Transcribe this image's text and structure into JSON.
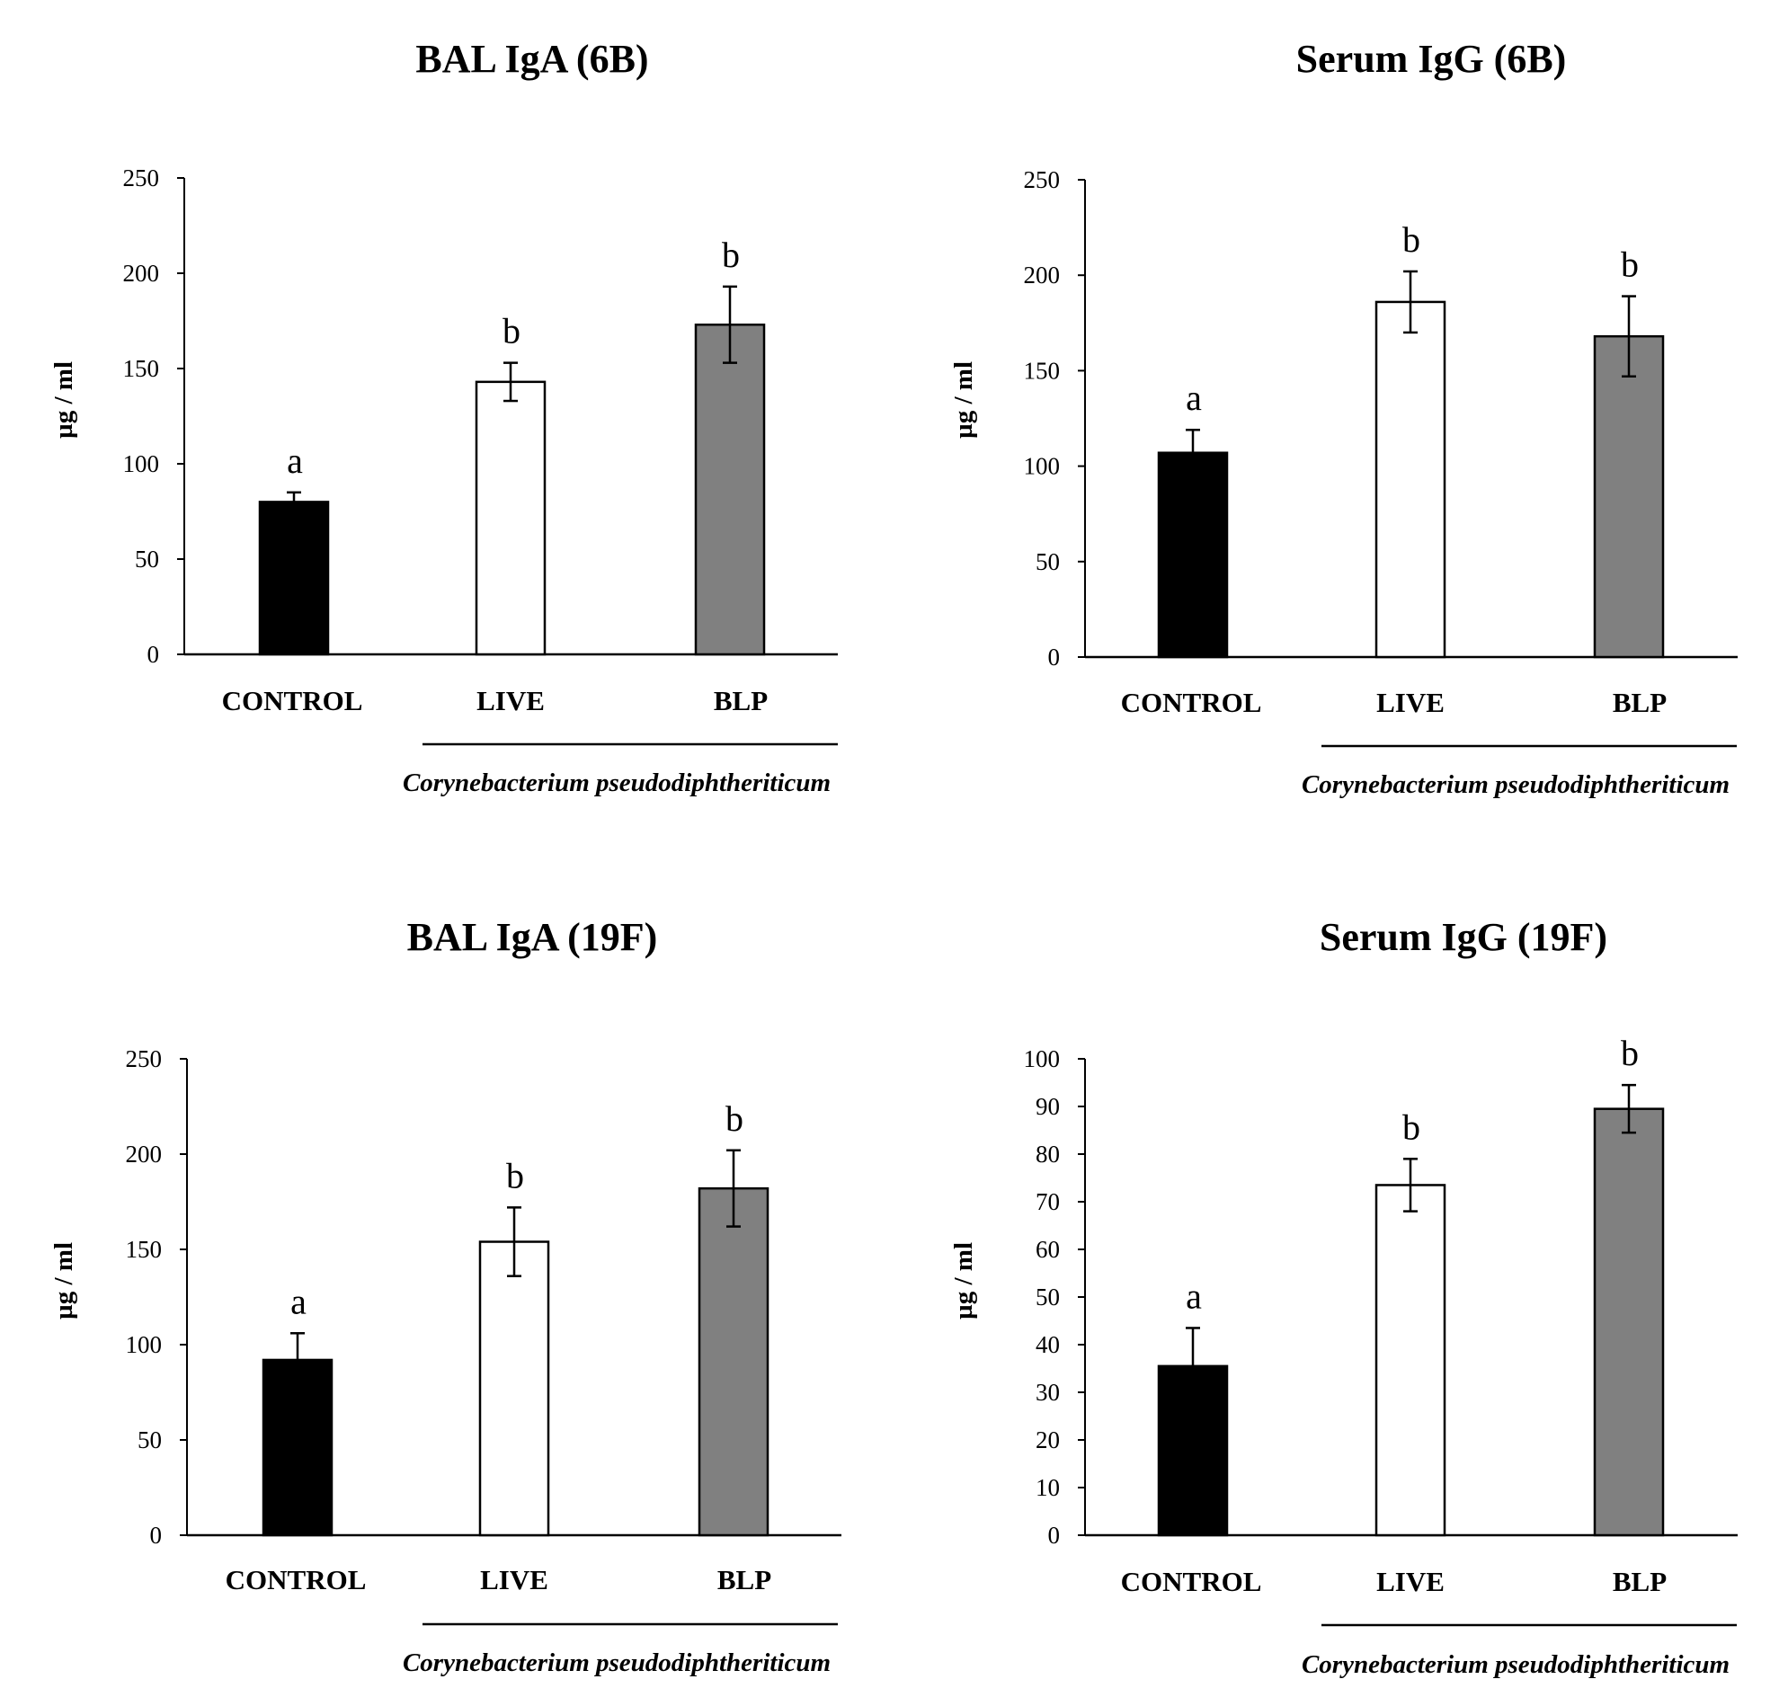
{
  "colors": {
    "control": "#000000",
    "live": "#ffffff",
    "blp": "#808080",
    "axis": "#000000"
  },
  "chart_data": [
    {
      "type": "bar",
      "title": "BAL IgA (6B)",
      "ylabel": "µg / ml",
      "xlabel": "",
      "ylim": [
        0,
        250
      ],
      "yticks": [
        0,
        50,
        100,
        150,
        200,
        250
      ],
      "categories": [
        "CONTROL",
        "LIVE",
        "BLP"
      ],
      "values": [
        80,
        143,
        173
      ],
      "errors": [
        5,
        10,
        20
      ],
      "significance": [
        "a",
        "b",
        "b"
      ],
      "group_label": "Corynebacterium pseudodiphtheriticum"
    },
    {
      "type": "bar",
      "title": "Serum IgG (6B)",
      "ylabel": "µg / ml",
      "xlabel": "",
      "ylim": [
        0,
        250
      ],
      "yticks": [
        0,
        50,
        100,
        150,
        200,
        250
      ],
      "categories": [
        "CONTROL",
        "LIVE",
        "BLP"
      ],
      "values": [
        107,
        186,
        168
      ],
      "errors": [
        12,
        16,
        21
      ],
      "significance": [
        "a",
        "b",
        "b"
      ],
      "group_label": "Corynebacterium pseudodiphtheriticum"
    },
    {
      "type": "bar",
      "title": "BAL IgA (19F)",
      "ylabel": "µg / ml",
      "xlabel": "",
      "ylim": [
        0,
        250
      ],
      "yticks": [
        0,
        50,
        100,
        150,
        200,
        250
      ],
      "categories": [
        "CONTROL",
        "LIVE",
        "BLP"
      ],
      "values": [
        92,
        154,
        182
      ],
      "errors": [
        14,
        18,
        20
      ],
      "significance": [
        "a",
        "b",
        "b"
      ],
      "group_label": "Corynebacterium pseudodiphtheriticum"
    },
    {
      "type": "bar",
      "title": "Serum IgG (19F)",
      "ylabel": "µg / ml",
      "xlabel": "",
      "ylim": [
        0,
        100
      ],
      "yticks": [
        0,
        10,
        20,
        30,
        40,
        50,
        60,
        70,
        80,
        90,
        100
      ],
      "categories": [
        "CONTROL",
        "LIVE",
        "BLP"
      ],
      "values": [
        35.5,
        73.5,
        89.5
      ],
      "errors": [
        8,
        5.5,
        5
      ],
      "significance": [
        "a",
        "b",
        "b"
      ],
      "group_label": "Corynebacterium pseudodiphtheriticum"
    }
  ]
}
